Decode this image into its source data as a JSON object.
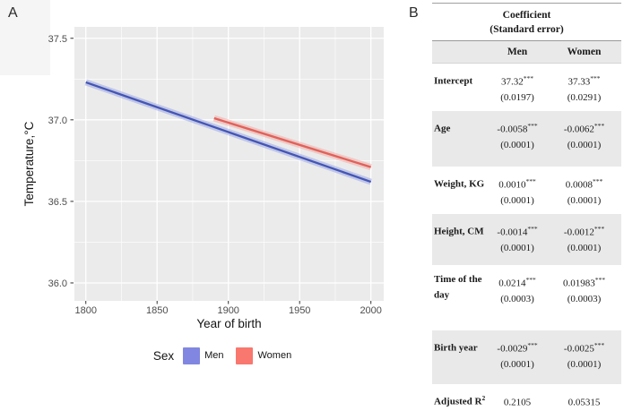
{
  "panels": {
    "a_label": "A",
    "b_label": "B"
  },
  "chart_data": {
    "type": "line",
    "title": "",
    "xlabel": "Year of birth",
    "ylabel": "Temperature,°C",
    "xlim": [
      1792,
      2009
    ],
    "ylim": [
      35.89,
      37.57
    ],
    "xticks": [
      1800,
      1850,
      1900,
      1950,
      2000
    ],
    "yticks": [
      36.0,
      36.5,
      37.0,
      37.5
    ],
    "grid": true,
    "panel_background": "#ebebeb",
    "gridline_color": "#ffffff",
    "legend_position": "bottom",
    "legend_title": "Sex",
    "series": [
      {
        "name": "Men",
        "x": [
          1800,
          2000
        ],
        "y": [
          37.23,
          36.62
        ],
        "line_color": "#4455b4",
        "band_color": "#9aa8e6"
      },
      {
        "name": "Women",
        "x": [
          1890,
          2000
        ],
        "y": [
          37.01,
          36.71
        ],
        "line_color": "#e0615a",
        "band_color": "#f2aba5"
      }
    ]
  },
  "legend": {
    "title": "Sex",
    "items": [
      {
        "label": "Men",
        "color": "#8187e0"
      },
      {
        "label": "Women",
        "color": "#f8776e"
      }
    ]
  },
  "table": {
    "header": {
      "line1": "Coefficient",
      "line2": "(Standard error)",
      "col_men": "Men",
      "col_women": "Women"
    },
    "rows": [
      {
        "label": "Intercept",
        "label_sup": "",
        "men_coef": "37.32",
        "men_stars": "***",
        "men_se": "(0.0197)",
        "women_coef": "37.33",
        "women_stars": "***",
        "women_se": "(0.0291)"
      },
      {
        "label": "Age",
        "label_sup": "",
        "men_coef": "-0.0058",
        "men_stars": "***",
        "men_se": "(0.0001)",
        "women_coef": "-0.0062",
        "women_stars": "***",
        "women_se": "(0.0001)"
      },
      {
        "label": "Weight, KG",
        "label_sup": "",
        "men_coef": "0.0010",
        "men_stars": "***",
        "men_se": "(0.0001)",
        "women_coef": "0.0008",
        "women_stars": "***",
        "women_se": "(0.0001)"
      },
      {
        "label": "Height, CM",
        "label_sup": "",
        "men_coef": "-0.0014",
        "men_stars": "***",
        "men_se": "(0.0001)",
        "women_coef": "-0.0012",
        "women_stars": "***",
        "women_se": "(0.0001)"
      },
      {
        "label": "Time of the day",
        "label_sup": "",
        "men_coef": "0.0214",
        "men_stars": "***",
        "men_se": "(0.0003)",
        "women_coef": "0.01983",
        "women_stars": "***",
        "women_se": "(0.0003)"
      },
      {
        "label": "Birth year",
        "label_sup": "",
        "men_coef": "-0.0029",
        "men_stars": "***",
        "men_se": "(0.0001)",
        "women_coef": "-0.0025",
        "women_stars": "***",
        "women_se": "(0.0001)"
      },
      {
        "label": "Adjusted R",
        "label_sup": "2",
        "men_coef": "0.2105",
        "men_stars": "",
        "men_se": "",
        "women_coef": "0.05315",
        "women_stars": "",
        "women_se": ""
      }
    ]
  }
}
